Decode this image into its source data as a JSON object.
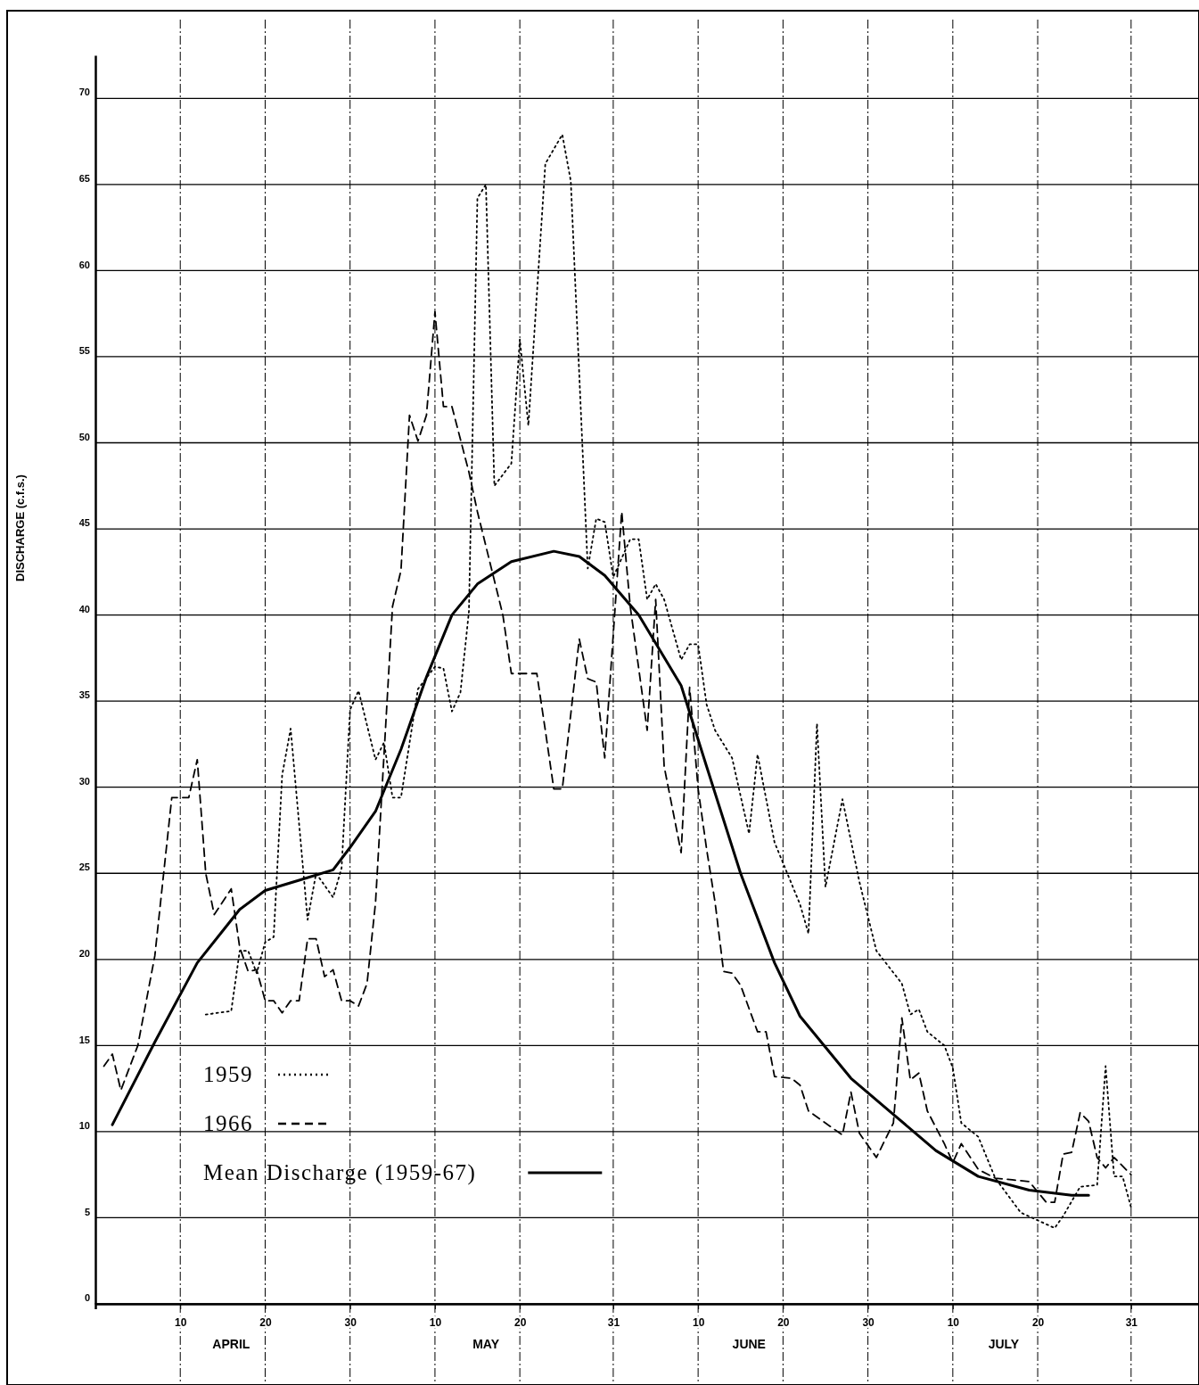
{
  "chart_data": {
    "type": "line",
    "ylabel": "DISCHARGE (c.f.s.)",
    "xlim": [
      "--03-31",
      "--08-08"
    ],
    "ylim": [
      0,
      72.5
    ],
    "xticks": [
      {
        "value": "--04-10",
        "label": "10"
      },
      {
        "value": "--04-20",
        "label": "20"
      },
      {
        "value": "--04-30",
        "label": "30"
      },
      {
        "value": "--05-10",
        "label": "10"
      },
      {
        "value": "--05-20",
        "label": "20"
      },
      {
        "value": "--05-31",
        "label": "31"
      },
      {
        "value": "--06-10",
        "label": "10"
      },
      {
        "value": "--06-20",
        "label": "20"
      },
      {
        "value": "--06-30",
        "label": "30"
      },
      {
        "value": "--07-10",
        "label": "10"
      },
      {
        "value": "--07-20",
        "label": "20"
      },
      {
        "value": "--07-31",
        "label": "31"
      }
    ],
    "yticks": [
      0,
      5,
      10,
      15,
      20,
      25,
      30,
      35,
      40,
      45,
      50,
      55,
      60,
      65,
      70
    ],
    "grid": true,
    "legend": "bottom left",
    "annotations": [
      "APRIL",
      "MAY",
      "JUNE",
      "JULY"
    ],
    "series": [
      {
        "name": "1959",
        "color": "#000000",
        "line_style": "dotted",
        "x": [
          "--04-13",
          "--04-16",
          "--04-17",
          "--04-18",
          "--04-19",
          "--04-20",
          "--04-21",
          "--04-22",
          "--04-23",
          "--04-25",
          "--04-26",
          "--04-28",
          "--04-29",
          "--04-30",
          "--05-01",
          "--05-03",
          "--05-04",
          "--05-05",
          "--05-06",
          "--05-08",
          "--05-10",
          "--05-11",
          "--05-12",
          "--05-13",
          "--05-14",
          "--05-15",
          "--05-16",
          "--05-17",
          "--05-19",
          "--05-20",
          "--05-21",
          "--05-23",
          "--05-25",
          "--05-26",
          "--05-28",
          "--05-29",
          "--05-30",
          "--05-31",
          "--06-01",
          "--06-02",
          "--06-03",
          "--06-04",
          "--06-05",
          "--06-06",
          "--06-08",
          "--06-09",
          "--06-10",
          "--06-11",
          "--06-12",
          "--06-14",
          "--06-16",
          "--06-17",
          "--06-19",
          "--06-22",
          "--06-23",
          "--06-24",
          "--06-25",
          "--06-27",
          "--06-29",
          "--07-01",
          "--07-04",
          "--07-05",
          "--07-06",
          "--07-07",
          "--07-09",
          "--07-10",
          "--07-11",
          "--07-13",
          "--07-15",
          "--07-18",
          "--07-22",
          "--07-23",
          "--07-25",
          "--07-27",
          "--07-28",
          "--07-29",
          "--07-30",
          "--07-31"
        ],
        "values": [
          16.8,
          17.0,
          20.5,
          20.5,
          19.2,
          21.0,
          21.3,
          30.7,
          33.4,
          22.3,
          25.0,
          23.6,
          25.3,
          34.5,
          35.6,
          31.6,
          32.6,
          29.4,
          29.4,
          35.7,
          37.0,
          36.9,
          34.4,
          35.5,
          40.2,
          64.2,
          65.0,
          47.5,
          48.8,
          56.0,
          51.0,
          66.2,
          67.9,
          65.2,
          42.7,
          45.6,
          45.4,
          42.2,
          43.3,
          44.4,
          44.4,
          40.9,
          41.8,
          40.9,
          37.4,
          38.3,
          38.3,
          34.8,
          33.3,
          31.7,
          27.3,
          31.9,
          26.8,
          23.2,
          21.5,
          33.7,
          24.2,
          29.3,
          24.5,
          20.5,
          18.6,
          16.8,
          17.1,
          15.8,
          15.0,
          13.7,
          10.5,
          9.7,
          7.3,
          5.3,
          4.4,
          5.1,
          6.8,
          6.9,
          13.8,
          7.4,
          7.4,
          5.6
        ]
      },
      {
        "name": "1966",
        "color": "#000000",
        "line_style": "dashed",
        "x": [
          "--04-01",
          "--04-02",
          "--04-03",
          "--04-05",
          "--04-07",
          "--04-09",
          "--04-11",
          "--04-12",
          "--04-13",
          "--04-14",
          "--04-16",
          "--04-17",
          "--04-18",
          "--04-19",
          "--04-20",
          "--04-21",
          "--04-22",
          "--04-23",
          "--04-24",
          "--04-25",
          "--04-26",
          "--04-27",
          "--04-28",
          "--04-29",
          "--04-30",
          "--05-01",
          "--05-02",
          "--05-03",
          "--05-05",
          "--05-06",
          "--05-07",
          "--05-08",
          "--05-09",
          "--05-10",
          "--05-11",
          "--05-12",
          "--05-14",
          "--05-15",
          "--05-18",
          "--05-19",
          "--05-22",
          "--05-23",
          "--05-24",
          "--05-25",
          "--05-27",
          "--05-28",
          "--05-29",
          "--05-30",
          "--06-01",
          "--06-02",
          "--06-04",
          "--06-05",
          "--06-06",
          "--06-08",
          "--06-09",
          "--06-10",
          "--06-11",
          "--06-12",
          "--06-13",
          "--06-14",
          "--06-15",
          "--06-17",
          "--06-18",
          "--06-19",
          "--06-21",
          "--06-22",
          "--06-23",
          "--06-25",
          "--06-27",
          "--06-28",
          "--06-29",
          "--07-01",
          "--07-03",
          "--07-04",
          "--07-05",
          "--07-06",
          "--07-07",
          "--07-09",
          "--07-10",
          "--07-11",
          "--07-13",
          "--07-15",
          "--07-17",
          "--07-19",
          "--07-21",
          "--07-22",
          "--07-23",
          "--07-24",
          "--07-25",
          "--07-26",
          "--07-27",
          "--07-28",
          "--07-29",
          "--07-31"
        ],
        "values": [
          13.8,
          14.5,
          12.4,
          15.0,
          20.2,
          29.4,
          29.4,
          31.6,
          25.0,
          22.6,
          24.1,
          20.7,
          19.3,
          19.4,
          17.6,
          17.6,
          16.9,
          17.6,
          17.6,
          21.2,
          21.2,
          19.0,
          19.4,
          17.6,
          17.6,
          17.3,
          18.6,
          23.3,
          40.5,
          42.6,
          51.6,
          50.1,
          51.6,
          57.6,
          52.1,
          52.1,
          48.3,
          46.0,
          40.0,
          36.6,
          36.6,
          33.3,
          29.9,
          29.9,
          38.6,
          36.3,
          36.1,
          31.7,
          46.0,
          40.5,
          33.3,
          40.9,
          31.2,
          26.2,
          35.8,
          29.9,
          26.4,
          23.3,
          19.3,
          19.2,
          18.5,
          15.8,
          15.8,
          13.2,
          13.1,
          12.7,
          11.2,
          10.5,
          9.8,
          12.3,
          9.9,
          8.5,
          10.5,
          16.6,
          13.0,
          13.4,
          11.2,
          9.3,
          8.2,
          9.3,
          7.8,
          7.3,
          7.2,
          7.1,
          5.9,
          5.9,
          8.7,
          8.8,
          11.1,
          10.6,
          8.5,
          7.9,
          8.5,
          7.5
        ]
      },
      {
        "name": "Mean Discharge (1959-67)",
        "color": "#000000",
        "line_style": "solid",
        "x": [
          "--04-02",
          "--04-07",
          "--04-12",
          "--04-17",
          "--04-20",
          "--04-24",
          "--04-28",
          "--04-30",
          "--05-03",
          "--05-06",
          "--05-09",
          "--05-12",
          "--05-15",
          "--05-19",
          "--05-24",
          "--05-27",
          "--05-30",
          "--06-03",
          "--06-08",
          "--06-11",
          "--06-15",
          "--06-19",
          "--06-22",
          "--06-28",
          "--07-03",
          "--07-08",
          "--07-13",
          "--07-19",
          "--07-24",
          "--07-26"
        ],
        "values": [
          10.4,
          15.2,
          19.8,
          22.9,
          24.0,
          24.6,
          25.2,
          26.5,
          28.6,
          32.2,
          36.4,
          40.0,
          41.8,
          43.1,
          43.7,
          43.4,
          42.3,
          40.0,
          35.9,
          31.2,
          25.0,
          19.8,
          16.7,
          13.1,
          11.0,
          8.9,
          7.4,
          6.6,
          6.3,
          6.3
        ]
      }
    ]
  }
}
